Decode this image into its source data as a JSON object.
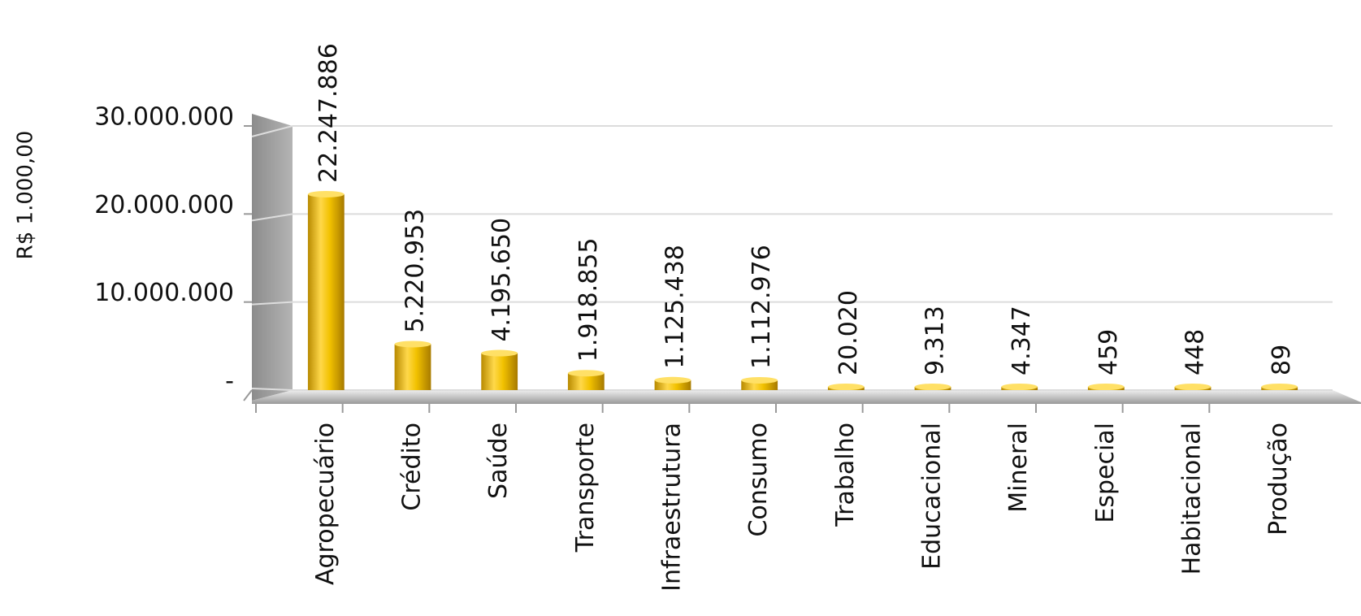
{
  "chart_data": {
    "type": "bar",
    "y_axis_label": "R$ 1.000,00",
    "categories": [
      "Agropecuário",
      "Crédito",
      "Saúde",
      "Transporte",
      "Infraestrutura",
      "Consumo",
      "Trabalho",
      "Educacional",
      "Mineral",
      "Especial",
      "Habitacional",
      "Produção"
    ],
    "values": [
      22247886,
      5220953,
      4195650,
      1918855,
      1125438,
      1112976,
      20020,
      9313,
      4347,
      459,
      448,
      89
    ],
    "value_labels": [
      "22.247.886",
      "5.220.953",
      "4.195.650",
      "1.918.855",
      "1.125.438",
      "1.112.976",
      "20.020",
      "9.313",
      "4.347",
      "459",
      "448",
      "89"
    ],
    "color": "#f2c200",
    "ylim": [
      0,
      30000000
    ],
    "yticks": [
      {
        "value": 0,
        "label": "-"
      },
      {
        "value": 10000000,
        "label": "10.000.000"
      },
      {
        "value": 20000000,
        "label": "20.000.000"
      },
      {
        "value": 30000000,
        "label": "30.000.000"
      }
    ],
    "grid": true
  }
}
